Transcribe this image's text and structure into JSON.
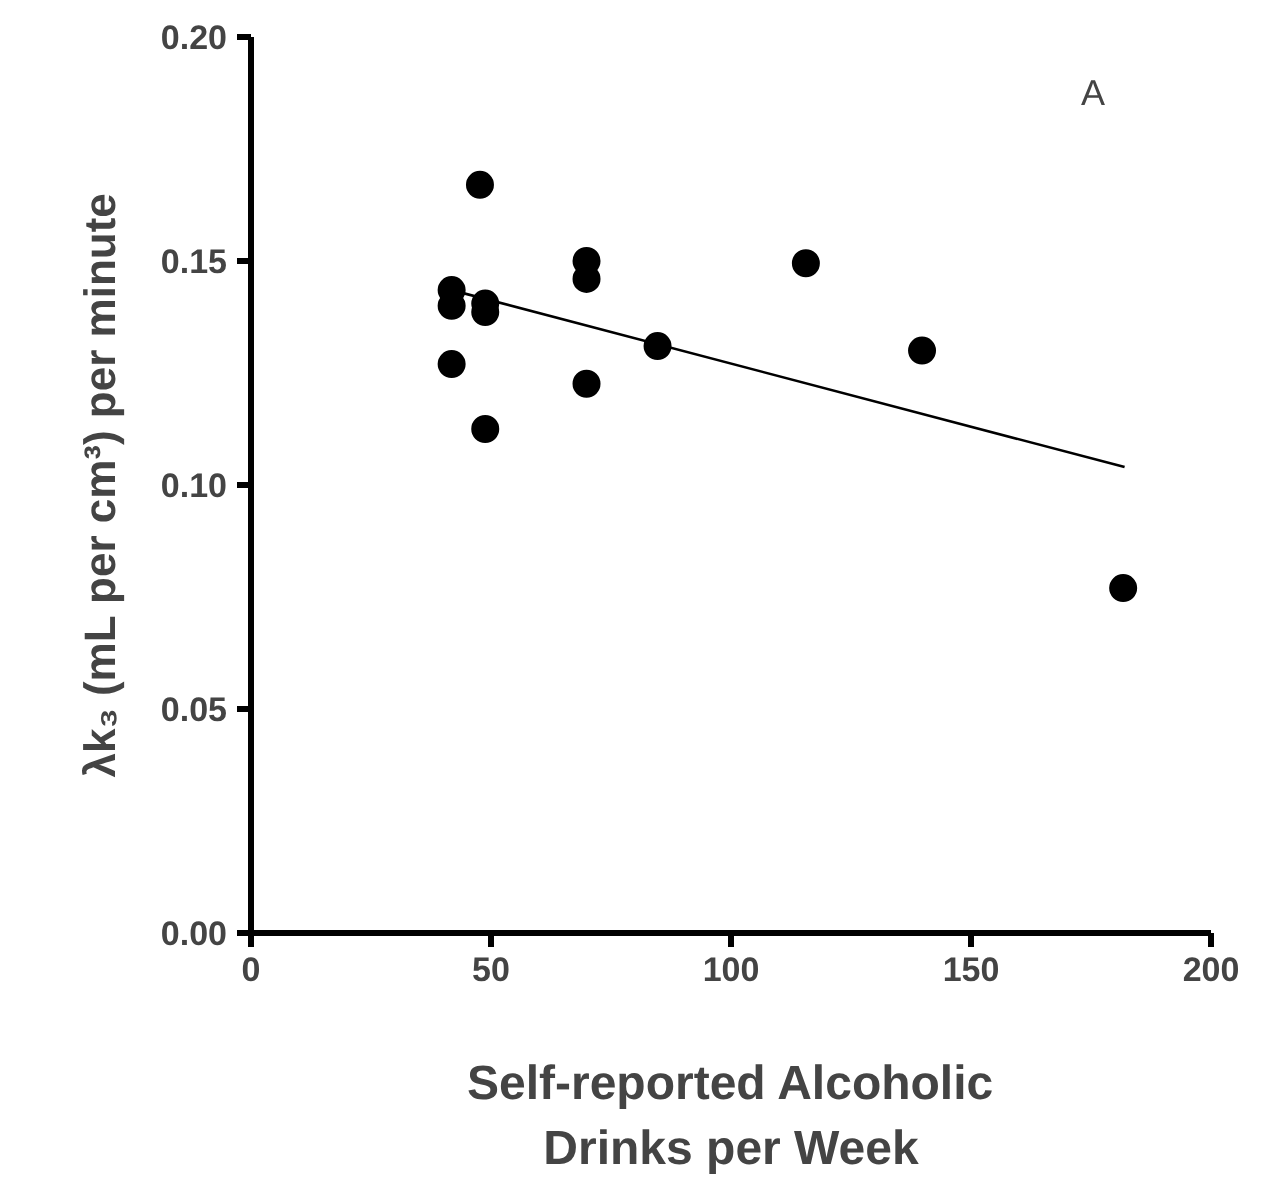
{
  "chart_data": {
    "type": "scatter",
    "xlabel": "Self-reported Alcoholic\nDrinks per Week",
    "ylabel": "λk₃ (mL per cm³) per minute",
    "annotations": [
      "A"
    ],
    "xlim": [
      0,
      200
    ],
    "xticks": [
      0,
      50,
      100,
      150,
      200
    ],
    "ylim": [
      0,
      0.2
    ],
    "yticks": [
      {
        "value": 0,
        "label": "0.00"
      },
      {
        "value": 0.05,
        "label": "0.05"
      },
      {
        "value": 0.1,
        "label": "0.10"
      },
      {
        "value": 0.15,
        "label": "0.15"
      },
      {
        "value": 0.2,
        "label": "0.20"
      }
    ],
    "grid": false,
    "series": [
      {
        "marker": "circle",
        "color": "#000000",
        "x": [
          41.8,
          41.8,
          41.8,
          47.7,
          48.8,
          48.8,
          48.8,
          69.9,
          69.9,
          69.9,
          84.7,
          115.6,
          139.8,
          181.7
        ],
        "values": [
          0.1435,
          0.14,
          0.127,
          0.167,
          0.1405,
          0.1386,
          0.1125,
          0.15,
          0.146,
          0.1226,
          0.131,
          0.1495,
          0.13,
          0.077
        ]
      },
      {
        "type": "line",
        "color": "#000000",
        "line_style": "solid",
        "x": [
          41.8,
          182.0
        ],
        "values": [
          0.1435,
          0.104
        ]
      }
    ]
  }
}
